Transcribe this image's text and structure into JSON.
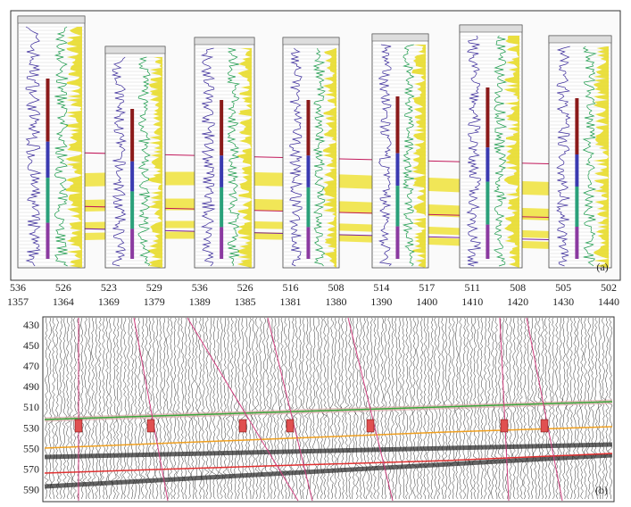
{
  "panel_a": {
    "label": "(a)"
  },
  "panel_b": {
    "label": "(b)",
    "columns": [
      {
        "line": "536",
        "trace": "1357"
      },
      {
        "line": "526",
        "trace": "1364"
      },
      {
        "line": "523",
        "trace": "1369"
      },
      {
        "line": "529",
        "trace": "1379"
      },
      {
        "line": "536",
        "trace": "1389"
      },
      {
        "line": "526",
        "trace": "1385"
      },
      {
        "line": "516",
        "trace": "1381"
      },
      {
        "line": "508",
        "trace": "1380"
      },
      {
        "line": "514",
        "trace": "1390"
      },
      {
        "line": "517",
        "trace": "1400"
      },
      {
        "line": "511",
        "trace": "1410"
      },
      {
        "line": "508",
        "trace": "1420"
      },
      {
        "line": "505",
        "trace": "1430"
      },
      {
        "line": "502",
        "trace": "1440"
      }
    ],
    "depth_labels": [
      "430",
      "450",
      "470",
      "490",
      "510",
      "530",
      "550",
      "570",
      "590"
    ]
  }
}
